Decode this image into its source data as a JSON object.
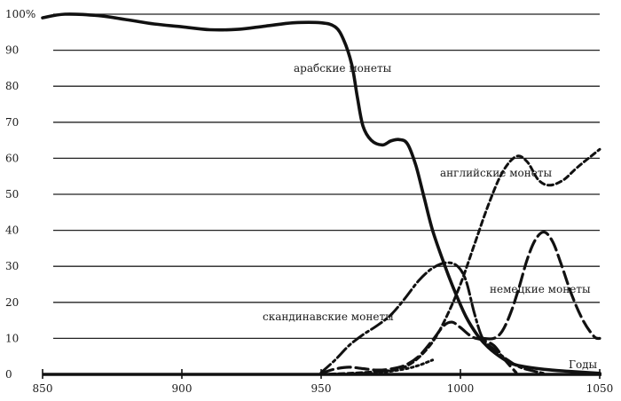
{
  "chart_data": {
    "type": "line",
    "title": "",
    "xlabel": "Годы",
    "ylabel": "",
    "xlim": [
      850,
      1050
    ],
    "ylim": [
      0,
      100
    ],
    "grid": true,
    "x_ticks": [
      "850",
      "900",
      "950",
      "1000",
      "1050"
    ],
    "y_ticks": [
      "0",
      "10",
      "20",
      "30",
      "40",
      "50",
      "60",
      "70",
      "80",
      "90",
      "100%"
    ],
    "series": [
      {
        "name": "арабские монеты",
        "style": "solid",
        "points": [
          [
            850,
            99
          ],
          [
            858,
            100
          ],
          [
            870,
            99.6
          ],
          [
            880,
            98.5
          ],
          [
            890,
            97.3
          ],
          [
            900,
            96.5
          ],
          [
            910,
            95.7
          ],
          [
            920,
            95.8
          ],
          [
            930,
            96.7
          ],
          [
            940,
            97.6
          ],
          [
            950,
            97.6
          ],
          [
            955,
            96.5
          ],
          [
            958,
            93
          ],
          [
            961,
            86
          ],
          [
            963,
            77
          ],
          [
            965,
            69
          ],
          [
            968,
            65
          ],
          [
            972,
            63.7
          ],
          [
            975,
            64.8
          ],
          [
            978,
            65.2
          ],
          [
            981,
            64
          ],
          [
            984,
            58
          ],
          [
            987,
            49
          ],
          [
            990,
            40
          ],
          [
            994,
            31
          ],
          [
            998,
            23
          ],
          [
            1002,
            16
          ],
          [
            1006,
            11
          ],
          [
            1010,
            7.5
          ],
          [
            1015,
            4.5
          ],
          [
            1020,
            2.6
          ],
          [
            1030,
            1.4
          ],
          [
            1040,
            0.8
          ],
          [
            1050,
            0.3
          ]
        ]
      },
      {
        "name": "английские монеты",
        "style": "short-dash",
        "points": [
          [
            950,
            0
          ],
          [
            960,
            0.3
          ],
          [
            970,
            0.8
          ],
          [
            978,
            1.5
          ],
          [
            984,
            4
          ],
          [
            990,
            9
          ],
          [
            995,
            16
          ],
          [
            1000,
            25
          ],
          [
            1005,
            36
          ],
          [
            1010,
            47
          ],
          [
            1015,
            56
          ],
          [
            1020,
            60.5
          ],
          [
            1024,
            59
          ],
          [
            1028,
            54
          ],
          [
            1032,
            52.5
          ],
          [
            1037,
            54
          ],
          [
            1042,
            57.5
          ],
          [
            1050,
            62.5
          ]
        ]
      },
      {
        "name": "немецкие монеты",
        "style": "long-dash",
        "points": [
          [
            1008,
            10
          ],
          [
            1012,
            10
          ],
          [
            1015,
            12
          ],
          [
            1018,
            17
          ],
          [
            1021,
            24
          ],
          [
            1024,
            32
          ],
          [
            1027,
            37.5
          ],
          [
            1030,
            39.5
          ],
          [
            1033,
            37
          ],
          [
            1036,
            31
          ],
          [
            1040,
            22
          ],
          [
            1044,
            15
          ],
          [
            1048,
            10.5
          ],
          [
            1050,
            10
          ]
        ]
      },
      {
        "name": "скандинавские монеты",
        "style": "dash-dot",
        "points": [
          [
            950,
            0.5
          ],
          [
            955,
            4
          ],
          [
            960,
            8
          ],
          [
            965,
            11
          ],
          [
            970,
            13.5
          ],
          [
            975,
            16.5
          ],
          [
            980,
            21
          ],
          [
            985,
            26
          ],
          [
            990,
            29.5
          ],
          [
            995,
            31
          ],
          [
            999,
            30
          ],
          [
            1002,
            26
          ],
          [
            1005,
            17
          ],
          [
            1008,
            10
          ],
          [
            1012,
            7
          ],
          [
            1017,
            4
          ],
          [
            1022,
            1.8
          ],
          [
            1030,
            0.3
          ]
        ]
      },
      {
        "name": "",
        "style": "long-dash",
        "points": [
          [
            950,
            0.3
          ],
          [
            955,
            1.5
          ],
          [
            960,
            2
          ],
          [
            965,
            1.6
          ],
          [
            970,
            1.2
          ],
          [
            975,
            1.5
          ],
          [
            980,
            2.5
          ],
          [
            985,
            5
          ],
          [
            990,
            9.5
          ],
          [
            994,
            13.5
          ],
          [
            997,
            14.5
          ],
          [
            1000,
            13
          ],
          [
            1004,
            10.5
          ],
          [
            1008,
            9.5
          ],
          [
            1012,
            8
          ],
          [
            1016,
            4
          ],
          [
            1020,
            0.5
          ]
        ]
      },
      {
        "name": "",
        "style": "dotted",
        "points": [
          [
            950,
            0
          ],
          [
            958,
            0.1
          ],
          [
            965,
            0.3
          ],
          [
            972,
            0.6
          ],
          [
            980,
            1.5
          ],
          [
            985,
            2.5
          ],
          [
            990,
            4
          ]
        ]
      }
    ]
  }
}
